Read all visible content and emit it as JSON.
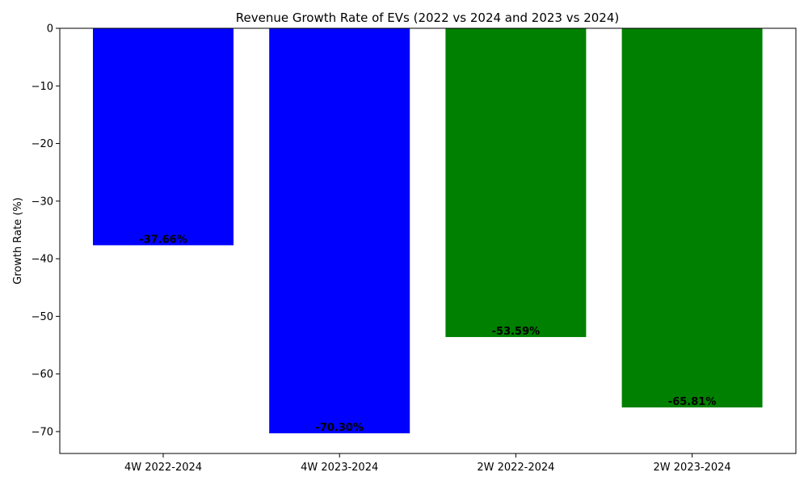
{
  "chart_data": {
    "type": "bar",
    "title": "Revenue Growth Rate of EVs (2022 vs 2024 and 2023 vs 2024)",
    "xlabel": "",
    "ylabel": "Growth Rate (%)",
    "categories": [
      "4W 2022-2024",
      "4W 2023-2024",
      "2W 2022-2024",
      "2W 2023-2024"
    ],
    "values": [
      -37.66,
      -70.3,
      -53.59,
      -65.81
    ],
    "data_labels": [
      "-37.66%",
      "-70.30%",
      "-53.59%",
      "-65.81%"
    ],
    "colors": [
      "#0000ff",
      "#0000ff",
      "#008000",
      "#008000"
    ],
    "ylim": [
      -73.8,
      0
    ],
    "yticks": [
      0,
      -10,
      -20,
      -30,
      -40,
      -50,
      -60,
      -70
    ],
    "ytick_labels": [
      "0",
      "−10",
      "−20",
      "−30",
      "−40",
      "−50",
      "−60",
      "−70"
    ],
    "grid": false,
    "legend": "none"
  }
}
